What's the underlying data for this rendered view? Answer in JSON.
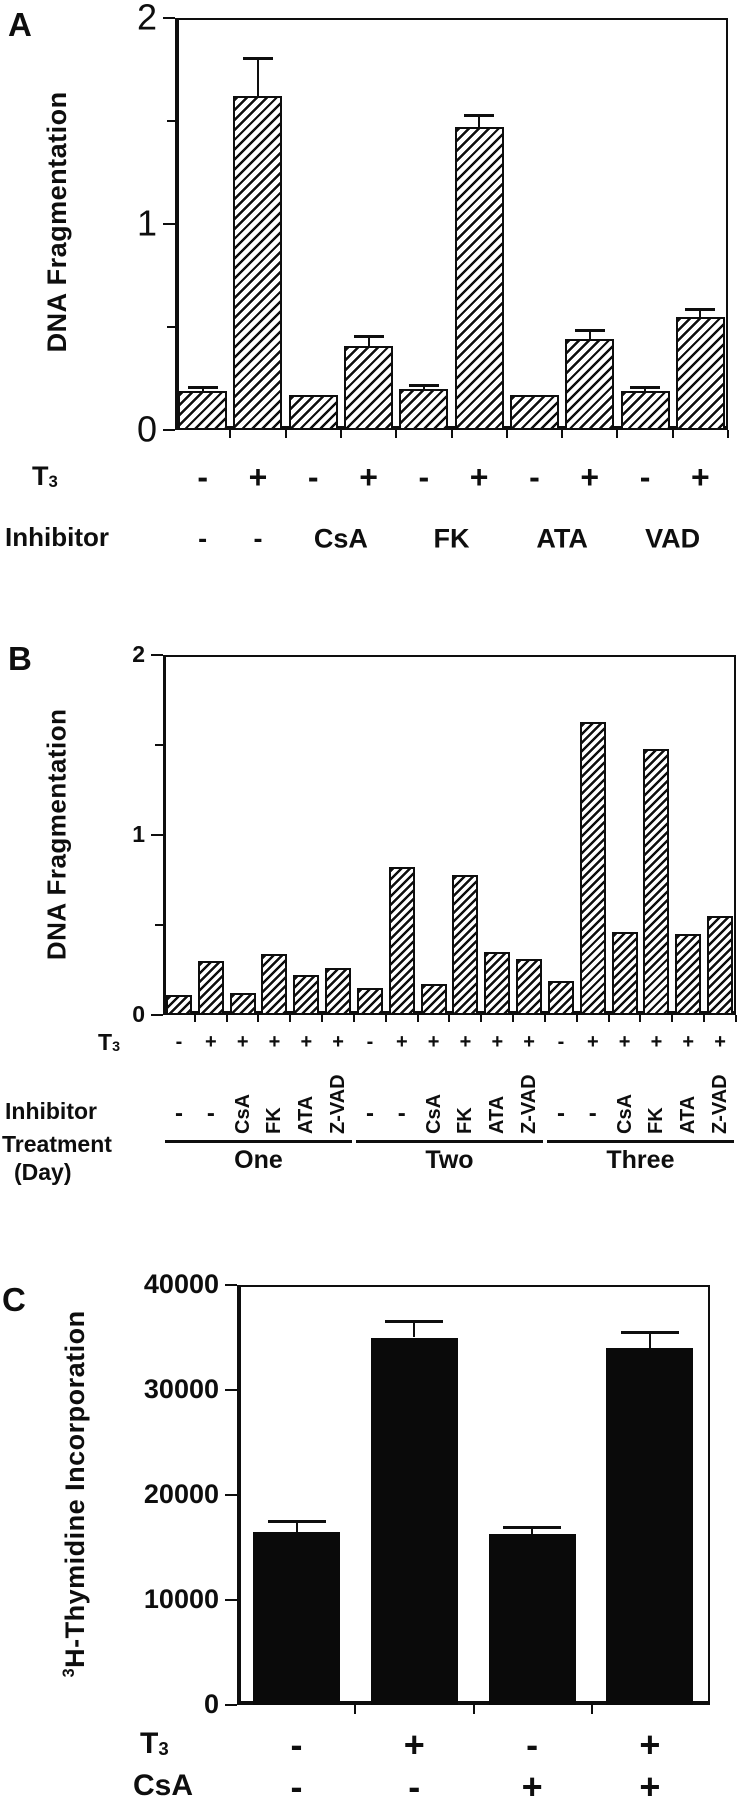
{
  "chart_data": [
    {
      "panel_letter": "A",
      "type": "bar",
      "title": "",
      "ylabel": "DNA Fragmentation",
      "ylim": [
        0,
        2
      ],
      "yticks": [
        0,
        1,
        2
      ],
      "ytick_labels": [
        "0",
        "1",
        "2"
      ],
      "minor_yticks": [
        0.5,
        1.5
      ],
      "grid": false,
      "bar_style": "hatched",
      "values": [
        0.19,
        1.62,
        0.17,
        0.41,
        0.2,
        1.47,
        0.17,
        0.44,
        0.19,
        0.55
      ],
      "errors": [
        0.01,
        0.18,
        0,
        0.04,
        0.01,
        0.05,
        0,
        0.04,
        0.01,
        0.03
      ],
      "t3_row": {
        "label_main": "T",
        "label_sub": "3",
        "values": [
          "-",
          "+",
          "-",
          "+",
          "-",
          "+",
          "-",
          "+",
          "-",
          "+"
        ]
      },
      "inhibitor_row": {
        "label": "Inhibitor",
        "values": [
          "-",
          "-",
          "CsA",
          "FK",
          "ATA",
          "VAD"
        ],
        "pair_spans": [
          1,
          1,
          2,
          2,
          2,
          2
        ]
      }
    },
    {
      "panel_letter": "B",
      "type": "bar",
      "title": "",
      "ylabel": "DNA Fragmentation",
      "ylim": [
        0,
        2
      ],
      "yticks": [
        0,
        1,
        2
      ],
      "ytick_labels": [
        "0",
        "1",
        "2"
      ],
      "minor_yticks": [
        0.5,
        1.5
      ],
      "grid": false,
      "bar_style": "hatched",
      "values": [
        0.11,
        0.3,
        0.12,
        0.34,
        0.22,
        0.26,
        0.15,
        0.82,
        0.17,
        0.78,
        0.35,
        0.31,
        0.19,
        1.63,
        0.46,
        1.48,
        0.45,
        0.55
      ],
      "errors": [],
      "t3_row": {
        "label_main": "T",
        "label_sub": "3",
        "values": [
          "-",
          "+",
          "+",
          "+",
          "+",
          "+",
          "-",
          "+",
          "+",
          "+",
          "+",
          "+",
          "-",
          "+",
          "+",
          "+",
          "+",
          "+"
        ]
      },
      "inhibitor_row": {
        "label": "Inhibitor",
        "values": [
          "-",
          "-",
          "CsA",
          "FK",
          "ATA",
          "Z-VAD",
          "-",
          "-",
          "CsA",
          "FK",
          "ATA",
          "Z-VAD",
          "-",
          "-",
          "CsA",
          "FK",
          "ATA",
          "Z-VAD"
        ]
      },
      "treatment_row": {
        "label": "Treatment",
        "label_day": "(Day)",
        "groups": [
          "One",
          "Two",
          "Three"
        ]
      }
    },
    {
      "panel_letter": "C",
      "type": "bar",
      "title": "",
      "ylabel": "3H-Thymidine Incorporation",
      "ylabel_sup": "3",
      "ylabel_text": "H-Thymidine Incorporation",
      "ylim": [
        0,
        40000
      ],
      "yticks": [
        0,
        10000,
        20000,
        30000,
        40000
      ],
      "ytick_labels": [
        "0",
        "10000",
        "20000",
        "30000",
        "40000"
      ],
      "grid": false,
      "bar_style": "solid",
      "values": [
        16500,
        35000,
        16300,
        34000
      ],
      "errors": [
        900,
        1400,
        500,
        1400
      ],
      "t3_row": {
        "label_main": "T",
        "label_sub": "3",
        "values": [
          "-",
          "+",
          "-",
          "+"
        ]
      },
      "csa_row": {
        "label": "CsA",
        "values": [
          "-",
          "-",
          "+",
          "+"
        ]
      }
    }
  ]
}
